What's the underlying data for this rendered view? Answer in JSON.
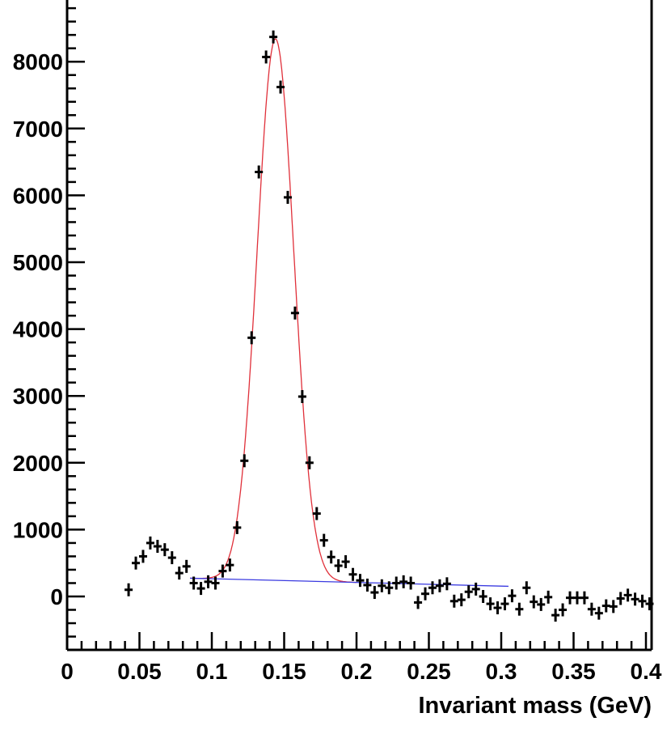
{
  "chart_data": {
    "type": "scatter",
    "title": "",
    "xlabel": "Invariant mass (GeV)",
    "ylabel": "",
    "xlim": [
      0,
      0.405
    ],
    "ylim": [
      -800,
      8900
    ],
    "xticks": [
      "0",
      "0.05",
      "0.1",
      "0.15",
      "0.2",
      "0.25",
      "0.3",
      "0.35",
      "0.4"
    ],
    "yticks": [
      "0",
      "1000",
      "2000",
      "3000",
      "4000",
      "5000",
      "6000",
      "7000",
      "8000"
    ],
    "grid": false,
    "legend": "none",
    "colors": {
      "data": "#000000",
      "signal_fit": "#e0303a",
      "background_fit": "#3a3ae0"
    },
    "series": [
      {
        "x": [
          0.0425,
          0.0475,
          0.0525,
          0.0575,
          0.0625,
          0.0675,
          0.0725,
          0.0775,
          0.0825,
          0.0875,
          0.0925,
          0.0975,
          0.1025,
          0.1075,
          0.1125,
          0.1175,
          0.1225,
          0.1275,
          0.1325,
          0.1375,
          0.1425,
          0.1475,
          0.1525,
          0.1575,
          0.1625,
          0.1675,
          0.1725,
          0.1775,
          0.1825,
          0.1875,
          0.1925,
          0.1975,
          0.2025,
          0.2075,
          0.2125,
          0.2175,
          0.2225,
          0.2275,
          0.2325,
          0.2375,
          0.2425,
          0.2475,
          0.2525,
          0.2575,
          0.2625,
          0.2675,
          0.2725,
          0.2775,
          0.2825,
          0.2875,
          0.2925,
          0.2975,
          0.3025,
          0.3075,
          0.3125,
          0.3175,
          0.3225,
          0.3275,
          0.3325,
          0.3375,
          0.3425,
          0.3475,
          0.3525,
          0.3575,
          0.3625,
          0.3675,
          0.3725,
          0.3775,
          0.3825,
          0.3875,
          0.3925,
          0.3975,
          0.4025
        ],
        "y": [
          100,
          500,
          600,
          800,
          750,
          700,
          580,
          350,
          450,
          200,
          120,
          220,
          200,
          380,
          470,
          1030,
          2030,
          3870,
          6350,
          8070,
          8370,
          7620,
          5970,
          4240,
          2990,
          2000,
          1240,
          840,
          590,
          460,
          520,
          330,
          240,
          170,
          60,
          160,
          130,
          200,
          220,
          200,
          -90,
          40,
          130,
          160,
          190,
          -70,
          -50,
          70,
          110,
          0,
          -110,
          -170,
          -110,
          10,
          -190,
          130,
          -80,
          -120,
          -10,
          -280,
          -200,
          -20,
          -20,
          -20,
          -190,
          -250,
          -140,
          -150,
          -30,
          20,
          -40,
          -70,
          -110
        ]
      }
    ],
    "fits": [
      {
        "mean": 0.144,
        "sigma": 0.0127,
        "amplitude": 8100
      },
      {
        "intercept": 320,
        "slope": -550,
        "x_start": 0.085,
        "x_end": 0.305
      }
    ]
  }
}
